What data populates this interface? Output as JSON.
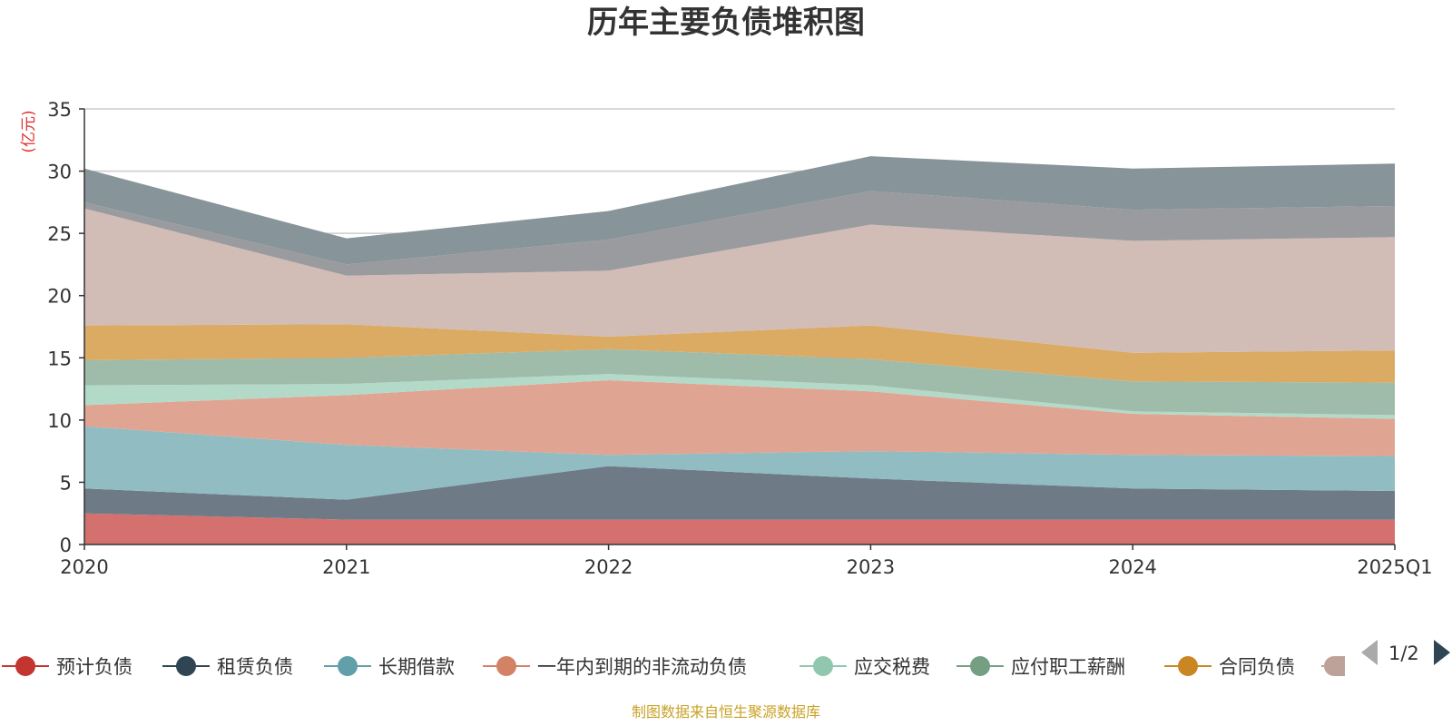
{
  "colors": {
    "axis": "#333333",
    "grid": "#cccccc",
    "unit": "#e03131",
    "source": "#c9a227",
    "page_arrow_prev": "#aaaaaa",
    "page_arrow_next": "#2f4554"
  },
  "legend": {
    "page": "1/2",
    "prev_icon": "triangle-left-icon",
    "next_icon": "triangle-right-icon"
  },
  "source_note": "制图数据来自恒生聚源数据库",
  "chart_data": {
    "type": "area",
    "stacked": true,
    "title": "历年主要负债堆积图",
    "ylabel": "(亿元)",
    "xlabel": "",
    "categories": [
      "2020",
      "2021",
      "2022",
      "2023",
      "2024",
      "2025Q1"
    ],
    "ylim": [
      0,
      35
    ],
    "yticks": [
      0,
      5,
      10,
      15,
      20,
      25,
      30,
      35
    ],
    "grid": true,
    "legend_position": "bottom",
    "series": [
      {
        "name": "预计负债",
        "color": "#c23531",
        "fill": "#d4706e",
        "values": [
          2.5,
          2.0,
          2.0,
          2.0,
          2.0,
          2.0
        ]
      },
      {
        "name": "租赁负债",
        "color": "#2f4554",
        "fill": "#6e7b86",
        "values": [
          2.0,
          1.6,
          4.3,
          3.3,
          2.5,
          2.3
        ]
      },
      {
        "name": "长期借款",
        "color": "#61a0a8",
        "fill": "#90bcc2",
        "values": [
          5.0,
          4.4,
          0.9,
          2.2,
          2.7,
          2.8
        ]
      },
      {
        "name": "一年内到期的非流动负债",
        "color": "#d48265",
        "fill": "#e0a592",
        "values": [
          1.7,
          4.0,
          6.0,
          4.8,
          3.3,
          3.0
        ]
      },
      {
        "name": "应交税费",
        "color": "#91c7ae",
        "fill": "#b3dac8",
        "values": [
          1.6,
          0.9,
          0.5,
          0.5,
          0.2,
          0.3
        ]
      },
      {
        "name": "应付职工薪酬",
        "color": "#749f83",
        "fill": "#9fbcaa",
        "values": [
          2.0,
          2.1,
          2.0,
          2.1,
          2.4,
          2.6
        ]
      },
      {
        "name": "合同负债",
        "color": "#ca8622",
        "fill": "#dbaa63",
        "values": [
          2.8,
          2.7,
          1.0,
          2.7,
          2.3,
          2.6
        ]
      },
      {
        "name": "",
        "color": "#bda29a",
        "fill": "#d2bcb6",
        "values": [
          9.4,
          3.9,
          5.3,
          8.1,
          9.0,
          9.1
        ]
      },
      {
        "name": "",
        "color": "#6e7074",
        "fill": "#9a9b9f",
        "values": [
          0.5,
          0.9,
          2.5,
          2.7,
          2.5,
          2.5
        ]
      },
      {
        "name": "",
        "color": "#546570",
        "fill": "#879499",
        "values": [
          2.7,
          2.1,
          2.3,
          2.8,
          3.3,
          3.4
        ]
      }
    ]
  }
}
